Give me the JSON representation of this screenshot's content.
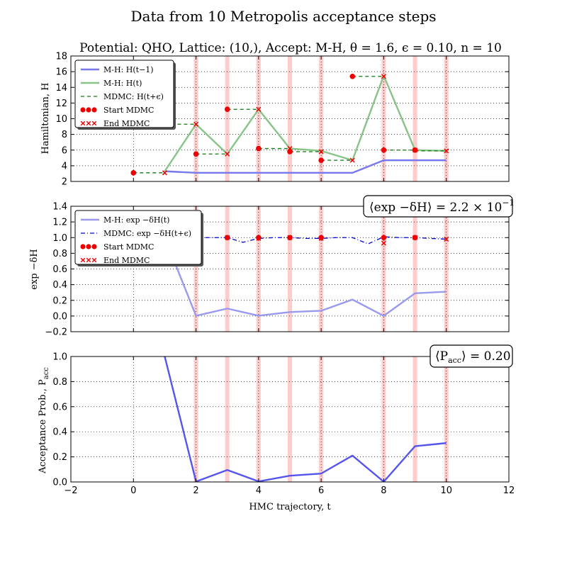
{
  "title": "Data from 10 Metropolis acceptance steps",
  "chart_data": [
    {
      "type": "line",
      "panel": "hamiltonian",
      "subtitle": "Potential: QHO, Lattice: (10,), Accept: M-H, θ = 1.6, ϵ = 0.10, n = 10",
      "ylabel": "Hamiltonian, H",
      "xlim": [
        -2,
        12
      ],
      "ylim": [
        2,
        18
      ],
      "yticks": [
        2,
        4,
        6,
        8,
        10,
        12,
        14,
        16,
        18
      ],
      "accept_marks": [
        2,
        3,
        4,
        5,
        6,
        8,
        9,
        10
      ],
      "series": [
        {
          "name": "M-H: H(t − 1)",
          "color": "#7777ee",
          "x": [
            1,
            2,
            3,
            4,
            5,
            6,
            7,
            8,
            9,
            10
          ],
          "values": [
            3.3,
            3.1,
            3.1,
            3.1,
            3.1,
            3.1,
            3.1,
            4.7,
            4.7,
            4.7
          ]
        },
        {
          "name": "M-H: H(t)",
          "color": "#88c488",
          "x": [
            1,
            2,
            3,
            4,
            5,
            6,
            7,
            8,
            9,
            10
          ],
          "values": [
            3.3,
            9.3,
            5.5,
            11.2,
            6.2,
            5.9,
            4.7,
            15.5,
            6.0,
            5.9
          ]
        },
        {
          "name": "MDMC: H(t + ϵ)",
          "color": "#117711",
          "segments": [
            [
              [
                0,
                3.1
              ],
              [
                1,
                3.1
              ]
            ],
            [
              [
                1,
                9.3
              ],
              [
                2,
                9.3
              ]
            ],
            [
              [
                2,
                5.5
              ],
              [
                3,
                5.5
              ]
            ],
            [
              [
                3,
                11.2
              ],
              [
                4,
                11.2
              ]
            ],
            [
              [
                4,
                6.2
              ],
              [
                5,
                6.2
              ]
            ],
            [
              [
                5,
                5.8
              ],
              [
                6,
                5.8
              ]
            ],
            [
              [
                6,
                4.7
              ],
              [
                7,
                4.7
              ]
            ],
            [
              [
                7,
                15.4
              ],
              [
                8,
                15.4
              ]
            ],
            [
              [
                8,
                6.0
              ],
              [
                9,
                6.0
              ]
            ],
            [
              [
                9,
                5.9
              ],
              [
                10,
                5.9
              ]
            ]
          ]
        },
        {
          "name": "Start MDMC",
          "color": "#ee0000",
          "x": [
            0,
            2,
            3,
            4,
            5,
            6,
            7,
            8,
            9
          ],
          "values": [
            3.1,
            5.5,
            11.2,
            6.2,
            5.8,
            4.7,
            15.4,
            6.0,
            6.0
          ]
        },
        {
          "name": "End MDMC",
          "color": "#ee0000",
          "x": [
            1,
            2,
            3,
            4,
            5,
            6,
            7,
            8,
            9,
            10
          ],
          "values": [
            3.1,
            9.3,
            5.5,
            11.2,
            6.2,
            5.8,
            4.7,
            15.4,
            6.0,
            5.9
          ]
        }
      ],
      "legend": [
        "M-H: H(t−1)",
        "M-H: H(t)",
        "MDMC: H(t+ϵ)",
        "Start MDMC",
        "End MDMC"
      ],
      "legend_position": "top-left"
    },
    {
      "type": "line",
      "panel": "exp_delta_h",
      "ylabel": "exp −δH",
      "annotation": "⟨exp −δH⟩ = 2.2 × 10",
      "annotation_exp": "−1",
      "xlim": [
        -2,
        12
      ],
      "ylim": [
        -0.2,
        1.4
      ],
      "yticks": [
        -0.2,
        0.0,
        0.2,
        0.4,
        0.6,
        0.8,
        1.0,
        1.2,
        1.4
      ],
      "series": [
        {
          "name": "M-H: exp −δH(t)",
          "color": "#9999ee",
          "x": [
            1,
            2,
            3,
            4,
            5,
            6,
            7,
            8,
            9,
            10
          ],
          "values": [
            1.0,
            0.003,
            0.095,
            0.004,
            0.05,
            0.067,
            0.21,
            0.002,
            0.29,
            0.31
          ]
        },
        {
          "name": "MDMC: exp −δH(t + ϵ)",
          "color": "#0000cc",
          "x": [
            2,
            2.4,
            3,
            3.5,
            4,
            4.5,
            5,
            5.5,
            6,
            6.5,
            7,
            7.5,
            8,
            8.5,
            9,
            9.5,
            10
          ],
          "values": [
            1.0,
            1.0,
            1.0,
            0.94,
            0.99,
            1.0,
            1.0,
            0.99,
            0.99,
            1.0,
            1.0,
            0.92,
            1.01,
            1.0,
            1.0,
            0.99,
            0.98
          ]
        },
        {
          "name": "Start MDMC",
          "color": "#ee0000",
          "x": [
            3,
            4,
            5,
            6,
            8,
            9
          ],
          "values": [
            1.0,
            1.0,
            1.0,
            1.0,
            1.0,
            1.0
          ]
        },
        {
          "name": "End MDMC",
          "color": "#ee0000",
          "x": [
            3,
            4,
            5,
            6,
            8,
            9,
            10
          ],
          "values": [
            1.0,
            0.99,
            1.0,
            0.99,
            0.93,
            1.0,
            0.98
          ]
        }
      ],
      "legend": [
        "M-H: exp −δH(t)",
        "MDMC: exp −δH(t+ϵ)",
        "Start MDMC",
        "End MDMC"
      ],
      "legend_position": "top-left"
    },
    {
      "type": "line",
      "panel": "acceptance",
      "ylabel": "Acceptance Prob., P",
      "ylabel_sub": "acc",
      "xlabel": "HMC trajectory, t",
      "annotation": "⟨P",
      "annotation_sub": "acc",
      "annotation_tail": "⟩ = 0.20",
      "xlim": [
        -2,
        12
      ],
      "ylim": [
        0.0,
        1.0
      ],
      "xticks": [
        -2,
        0,
        2,
        4,
        6,
        8,
        10,
        12
      ],
      "yticks": [
        0.0,
        0.2,
        0.4,
        0.6,
        0.8,
        1.0
      ],
      "series": [
        {
          "name": "Acceptance probability",
          "color": "#5555ee",
          "x": [
            1,
            2,
            3,
            4,
            5,
            6,
            7,
            8,
            9,
            10
          ],
          "values": [
            1.0,
            0.003,
            0.095,
            0.004,
            0.05,
            0.067,
            0.21,
            0.002,
            0.285,
            0.31
          ]
        }
      ]
    }
  ]
}
